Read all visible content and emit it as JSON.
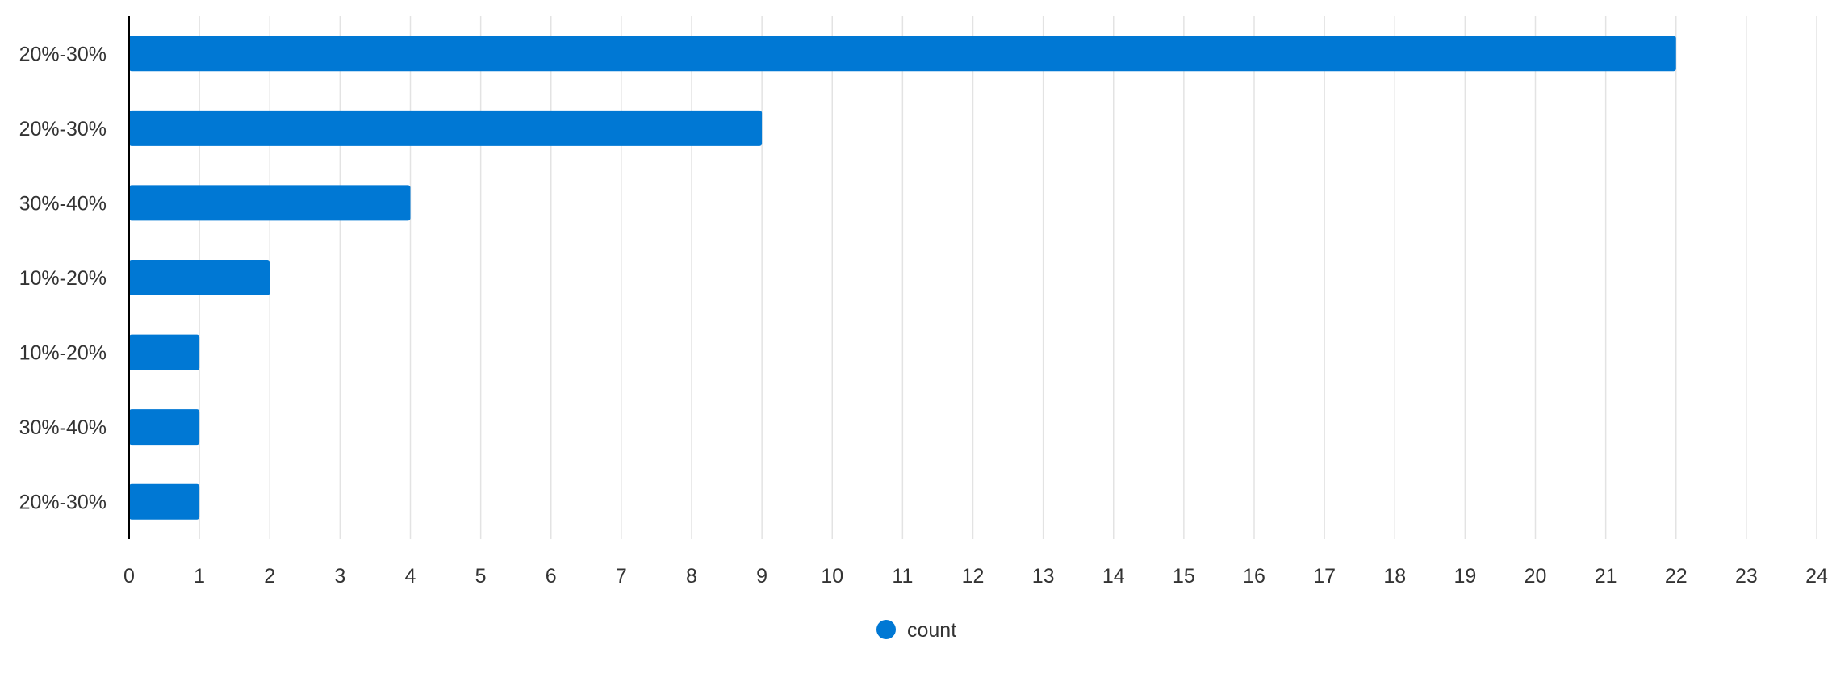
{
  "chart_data": {
    "type": "bar",
    "orientation": "horizontal",
    "categories": [
      "20%-30%",
      "20%-30%",
      "30%-40%",
      "10%-20%",
      "10%-20%",
      "30%-40%",
      "20%-30%"
    ],
    "series": [
      {
        "name": "count",
        "values": [
          22,
          9,
          4,
          2,
          1,
          1,
          1
        ]
      }
    ],
    "xlim": [
      0,
      24
    ],
    "x_ticks": [
      "0",
      "1",
      "2",
      "3",
      "4",
      "5",
      "6",
      "7",
      "8",
      "9",
      "10",
      "11",
      "12",
      "13",
      "14",
      "15",
      "16",
      "17",
      "18",
      "19",
      "20",
      "21",
      "22",
      "23",
      "24"
    ],
    "grid": true,
    "legend": {
      "position": "bottom",
      "entries": [
        "count"
      ]
    },
    "colors": {
      "bar": "#0078D4",
      "grid": "#E3E3E3",
      "axis": "#000000",
      "text": "#333333"
    },
    "title": "",
    "xlabel": "",
    "ylabel": ""
  }
}
